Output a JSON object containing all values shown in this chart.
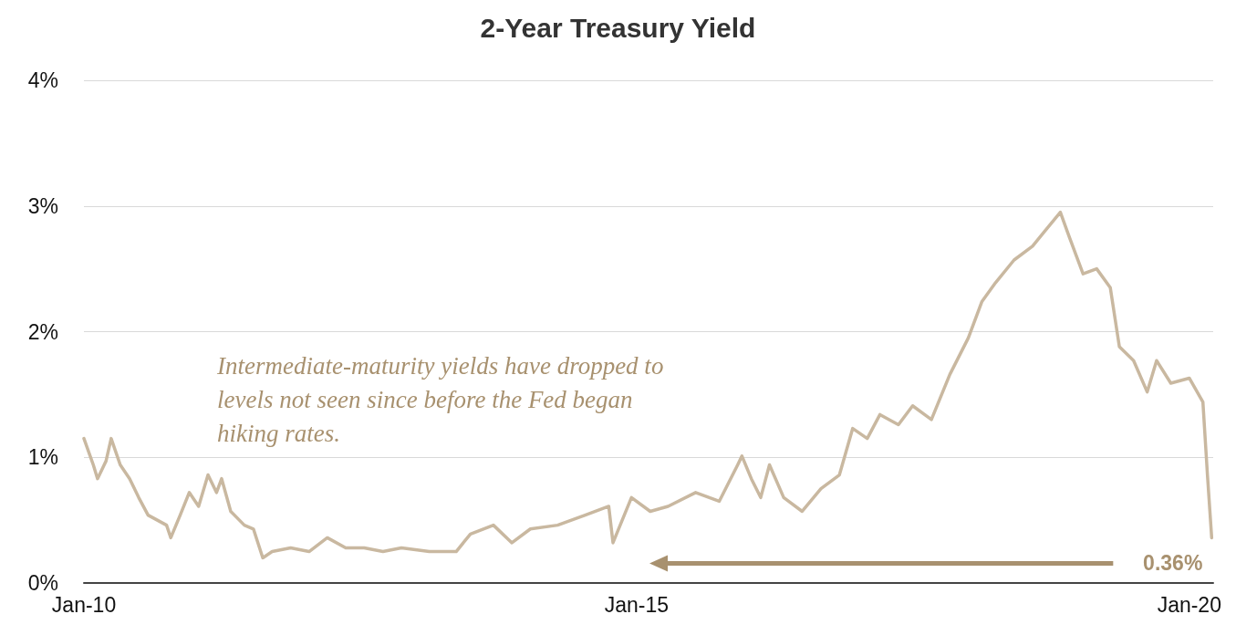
{
  "chart_data": {
    "type": "line",
    "title": "2-Year Treasury Yield",
    "x": [
      "2010-01-01",
      "2010-02-01",
      "2010-02-15",
      "2010-03-15",
      "2010-04-01",
      "2010-05-01",
      "2010-06-01",
      "2010-07-01",
      "2010-08-01",
      "2010-10-01",
      "2010-10-15",
      "2010-11-15",
      "2010-12-15",
      "2011-01-15",
      "2011-02-15",
      "2011-03-15",
      "2011-04-01",
      "2011-05-01",
      "2011-06-15",
      "2011-07-15",
      "2011-08-15",
      "2011-09-15",
      "2011-11-15",
      "2012-01-15",
      "2012-03-15",
      "2012-05-15",
      "2012-07-15",
      "2012-09-15",
      "2012-11-15",
      "2013-02-15",
      "2013-05-15",
      "2013-07-01",
      "2013-09-15",
      "2013-11-15",
      "2014-01-15",
      "2014-04-15",
      "2014-07-15",
      "2014-10-01",
      "2014-10-15",
      "2014-12-15",
      "2015-02-15",
      "2015-04-15",
      "2015-07-15",
      "2015-10-01",
      "2015-12-01",
      "2015-12-15",
      "2016-01-15",
      "2016-02-15",
      "2016-03-15",
      "2016-05-01",
      "2016-07-01",
      "2016-09-01",
      "2016-11-01",
      "2016-12-15",
      "2017-02-01",
      "2017-03-15",
      "2017-05-15",
      "2017-07-01",
      "2017-09-01",
      "2017-11-01",
      "2018-01-01",
      "2018-02-15",
      "2018-04-01",
      "2018-06-01",
      "2018-08-01",
      "2018-10-01",
      "2018-11-01",
      "2018-12-01",
      "2019-01-15",
      "2019-03-01",
      "2019-04-15",
      "2019-05-15",
      "2019-07-01",
      "2019-08-15",
      "2019-09-15",
      "2019-11-01",
      "2020-01-01",
      "2020-02-15",
      "2020-03-01",
      "2020-03-15"
    ],
    "series": [
      {
        "color": "#c9b8a0",
        "values": [
          1.15,
          0.94,
          0.83,
          0.97,
          1.15,
          0.94,
          0.83,
          0.68,
          0.54,
          0.46,
          0.36,
          0.54,
          0.72,
          0.61,
          0.86,
          0.72,
          0.83,
          0.57,
          0.46,
          0.43,
          0.2,
          0.25,
          0.28,
          0.25,
          0.36,
          0.28,
          0.28,
          0.25,
          0.28,
          0.25,
          0.25,
          0.39,
          0.46,
          0.32,
          0.43,
          0.46,
          0.54,
          0.61,
          0.32,
          0.68,
          0.57,
          0.61,
          0.72,
          0.65,
          0.94,
          1.01,
          0.83,
          0.68,
          0.94,
          0.68,
          0.57,
          0.75,
          0.86,
          1.23,
          1.15,
          1.34,
          1.26,
          1.41,
          1.3,
          1.66,
          1.95,
          2.24,
          2.39,
          2.57,
          2.68,
          2.86,
          2.95,
          2.75,
          2.46,
          2.5,
          2.35,
          1.88,
          1.77,
          1.52,
          1.77,
          1.59,
          1.63,
          1.44,
          0.86,
          0.36
        ]
      }
    ],
    "xlim": [
      "2010-01-01",
      "2020-03-20"
    ],
    "xticks": [
      {
        "value": "2010-01-01",
        "label": "Jan-10"
      },
      {
        "value": "2015-01-01",
        "label": "Jan-15"
      },
      {
        "value": "2020-01-01",
        "label": "Jan-20"
      }
    ],
    "ylim": [
      0,
      4
    ],
    "yticks": [
      {
        "value": 0,
        "label": "0%"
      },
      {
        "value": 1,
        "label": "1%"
      },
      {
        "value": 2,
        "label": "2%"
      },
      {
        "value": 3,
        "label": "3%"
      },
      {
        "value": 4,
        "label": "4%"
      }
    ],
    "grid": "y",
    "marker": "none",
    "line_style": "solid",
    "annotations": [
      "Intermediate-maturity yields have dropped to levels not seen since before the Fed began hiking rates.",
      {
        "text": "0.36%",
        "x": "2020-03-15",
        "y": 0.36
      }
    ]
  }
}
